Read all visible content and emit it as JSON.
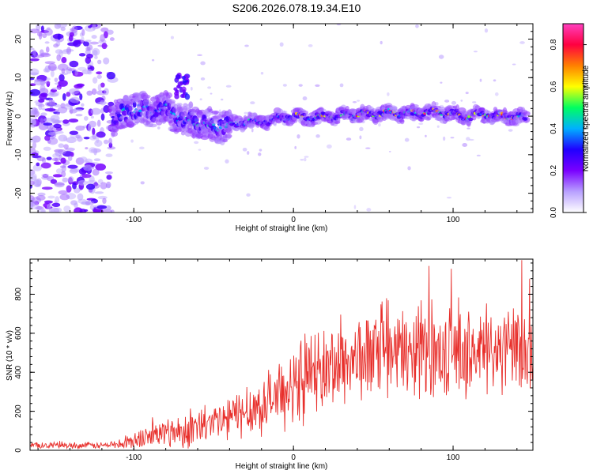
{
  "title": "S206.2026.078.19.34.E10",
  "chart_data": [
    {
      "type": "heatmap",
      "title": "S206.2026.078.19.34.E10",
      "xlabel": "Height of straight line (km)",
      "ylabel": "Frequency (Hz)",
      "xlim": [
        -165,
        150
      ],
      "ylim": [
        -25,
        24
      ],
      "xticks": [
        -100,
        0,
        100
      ],
      "yticks": [
        -20,
        -10,
        0,
        10,
        20
      ],
      "colorbar": {
        "label": "Normalized spectral amplitude",
        "range": [
          0.0,
          0.9
        ],
        "ticks": [
          0.0,
          0.2,
          0.4,
          0.6,
          0.8
        ],
        "colors": [
          "#ffffff",
          "#b8a0ff",
          "#7a00ff",
          "#2000ff",
          "#00b0ff",
          "#00ff60",
          "#ffff00",
          "#ff8000",
          "#ff0040",
          "#ff40c0"
        ]
      },
      "ridge": {
        "description_points_x": [
          -113,
          -100,
          -90,
          -80,
          -70,
          -60,
          -50,
          -40,
          -30,
          -20,
          -10,
          0,
          10,
          20,
          30,
          40,
          50,
          60,
          70,
          80,
          90,
          100,
          110,
          120,
          130,
          145
        ],
        "frequency_hz": [
          -1,
          2,
          1.5,
          2,
          -1,
          -1.5,
          -2.5,
          -2.5,
          -1.5,
          -1.5,
          -0.5,
          0,
          -0.5,
          0,
          0,
          0.5,
          0.5,
          1,
          0.5,
          1,
          1,
          0.5,
          0,
          0.5,
          0,
          -0.5
        ]
      }
    },
    {
      "type": "line",
      "title": "",
      "xlabel": "Height of straight line (km)",
      "ylabel": "SNR (10 * v/v)",
      "xlim": [
        -165,
        150
      ],
      "ylim": [
        0,
        980
      ],
      "xticks": [
        -100,
        0,
        100
      ],
      "yticks": [
        0,
        200,
        400,
        600,
        800
      ],
      "color": "#e8302c",
      "series": [
        {
          "name": "SNR",
          "x": [
            -165,
            -150,
            -140,
            -130,
            -120,
            -110,
            -100,
            -90,
            -80,
            -70,
            -60,
            -50,
            -40,
            -30,
            -20,
            -10,
            0,
            10,
            20,
            30,
            40,
            50,
            60,
            70,
            80,
            90,
            100,
            110,
            120,
            130,
            140,
            150
          ],
          "values": [
            25,
            25,
            25,
            25,
            25,
            30,
            45,
            75,
            90,
            100,
            115,
            135,
            165,
            200,
            230,
            275,
            320,
            390,
            410,
            450,
            470,
            485,
            495,
            500,
            500,
            505,
            495,
            500,
            505,
            510,
            505,
            510
          ],
          "noise_amplitude": [
            15,
            15,
            15,
            15,
            15,
            20,
            40,
            60,
            70,
            80,
            90,
            100,
            110,
            120,
            130,
            150,
            170,
            200,
            200,
            200,
            200,
            200,
            200,
            200,
            200,
            200,
            200,
            200,
            200,
            200,
            200,
            200
          ]
        }
      ],
      "peaks": [
        {
          "x": 143,
          "y": 975
        },
        {
          "x": 85,
          "y": 945
        },
        {
          "x": 99,
          "y": 930
        },
        {
          "x": 148,
          "y": 880
        }
      ]
    }
  ]
}
